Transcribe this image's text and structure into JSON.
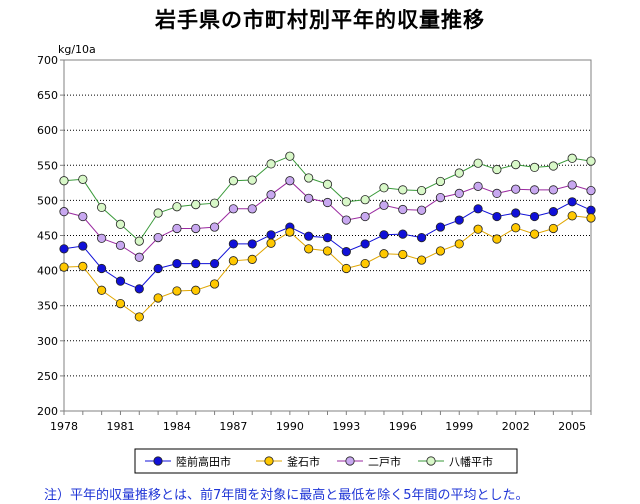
{
  "chart_data": {
    "type": "line",
    "title": "岩手県の市町村別平年的収量推移",
    "ylabel": "kg/10a",
    "xlabel": "",
    "ylim": [
      200,
      700
    ],
    "yticks": [
      200,
      250,
      300,
      350,
      400,
      450,
      500,
      550,
      600,
      650,
      700
    ],
    "x": [
      1978,
      1979,
      1980,
      1981,
      1982,
      1983,
      1984,
      1985,
      1986,
      1987,
      1988,
      1989,
      1990,
      1991,
      1992,
      1993,
      1994,
      1995,
      1996,
      1997,
      1998,
      1999,
      2000,
      2001,
      2002,
      2003,
      2004,
      2005,
      2006
    ],
    "xticks": [
      1978,
      1981,
      1984,
      1987,
      1990,
      1993,
      1996,
      1999,
      2002,
      2005
    ],
    "grid": "horizontal-dotted",
    "legend_position": "bottom",
    "series": [
      {
        "name": "陸前高田市",
        "color": "#1010d8",
        "marker_fill": "#1010d8",
        "values": [
          431,
          435,
          403,
          385,
          374,
          403,
          410,
          410,
          410,
          438,
          438,
          451,
          462,
          449,
          447,
          427,
          438,
          451,
          452,
          447,
          462,
          472,
          488,
          477,
          482,
          477,
          484,
          498,
          486
        ]
      },
      {
        "name": "釜石市",
        "color": "#e0a600",
        "marker_fill": "#ffc800",
        "values": [
          405,
          406,
          372,
          353,
          334,
          361,
          371,
          372,
          381,
          414,
          416,
          439,
          455,
          431,
          428,
          403,
          410,
          424,
          423,
          415,
          428,
          438,
          459,
          445,
          461,
          452,
          460,
          478,
          475
        ]
      },
      {
        "name": "二戸市",
        "color": "#9a2aa0",
        "marker_fill": "#c8a8f0",
        "values": [
          484,
          477,
          446,
          436,
          419,
          447,
          460,
          460,
          462,
          488,
          488,
          508,
          528,
          503,
          497,
          472,
          477,
          493,
          487,
          486,
          504,
          510,
          520,
          510,
          516,
          515,
          515,
          522,
          514
        ]
      },
      {
        "name": "八幡平市",
        "color": "#3a9a3a",
        "marker_fill": "#d8f8c8",
        "values": [
          528,
          530,
          490,
          466,
          442,
          482,
          491,
          494,
          496,
          528,
          529,
          552,
          563,
          532,
          523,
          498,
          501,
          518,
          515,
          514,
          527,
          539,
          553,
          544,
          551,
          547,
          549,
          560,
          556
        ]
      }
    ]
  },
  "footnote": "注）平年的収量推移とは、前7年間を対象に最高と最低を除く5年間の平均とした。"
}
